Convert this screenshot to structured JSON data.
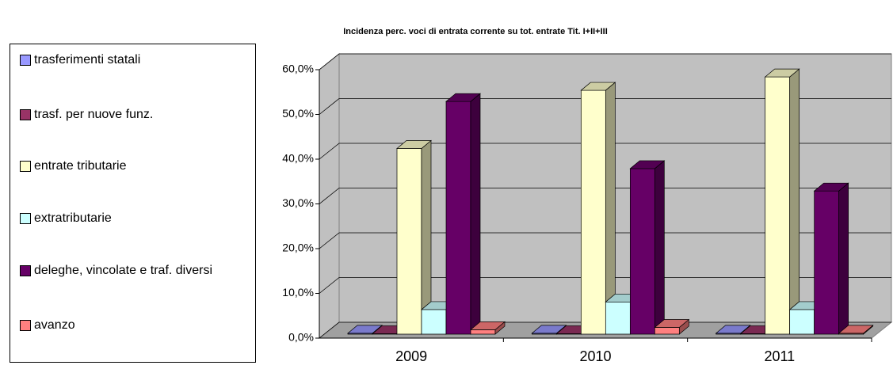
{
  "chart_data": {
    "type": "bar3d",
    "title": "Incidenza perc. voci di entrata corrente su tot. entrate Tit. I+II+III",
    "categories": [
      "2009",
      "2010",
      "2011"
    ],
    "series": [
      {
        "name": "trasferimenti statali",
        "color": "#9999ff",
        "values": [
          0.2,
          0.2,
          0.2
        ]
      },
      {
        "name": "trasf. per nuove funz.",
        "color": "#993366",
        "values": [
          0.1,
          0.1,
          0.1
        ]
      },
      {
        "name": "entrate tributarie",
        "color": "#ffffcc",
        "values": [
          41.5,
          54.5,
          57.5
        ]
      },
      {
        "name": "extratributarie",
        "color": "#ccffff",
        "values": [
          5.5,
          7.2,
          5.5
        ]
      },
      {
        "name": "deleghe, vincolate e traf. diversi",
        "color": "#660066",
        "values": [
          52,
          37,
          32
        ]
      },
      {
        "name": "avanzo",
        "color": "#ff8080",
        "values": [
          1,
          1.5,
          0.2
        ]
      }
    ],
    "ylim": [
      0,
      60
    ],
    "yticks": [
      {
        "value": 0,
        "label": "0,0%"
      },
      {
        "value": 10,
        "label": "10,0%"
      },
      {
        "value": 20,
        "label": "20,0%"
      },
      {
        "value": 30,
        "label": "30,0%"
      },
      {
        "value": 40,
        "label": "40,0%"
      },
      {
        "value": 50,
        "label": "50,0%"
      },
      {
        "value": 60,
        "label": "60,0%"
      }
    ],
    "grid": true
  }
}
